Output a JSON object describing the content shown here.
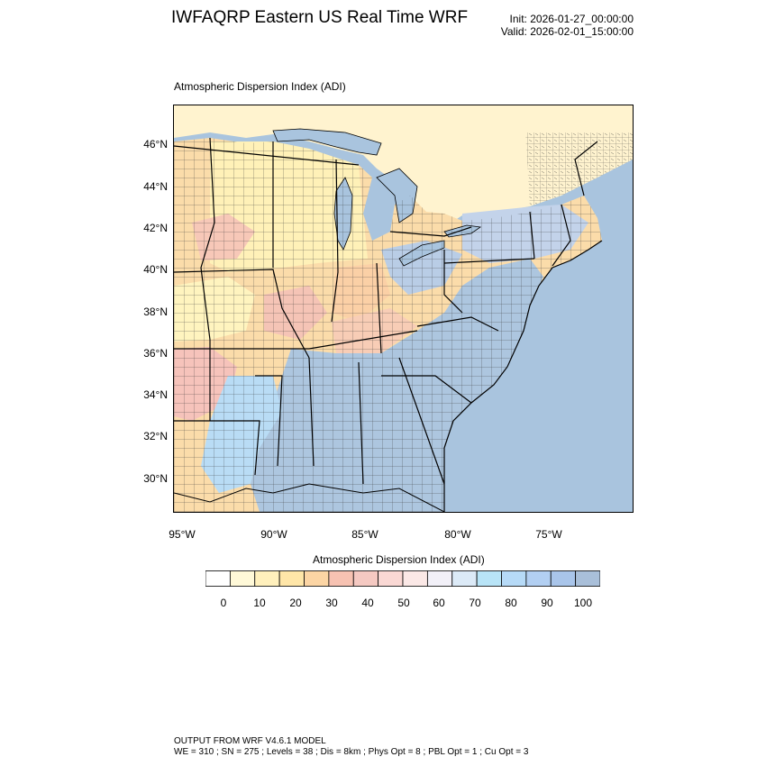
{
  "header": {
    "title": "IWFAQRP Eastern US Real Time WRF",
    "init": "Init: 2026-01-27_00:00:00",
    "valid": "Valid: 2026-02-01_15:00:00"
  },
  "plot": {
    "subtitle": "Atmospheric Dispersion Index   (ADI)",
    "lat_labels": [
      "46°N",
      "44°N",
      "42°N",
      "40°N",
      "38°N",
      "36°N",
      "34°N",
      "32°N",
      "30°N"
    ],
    "lon_labels": [
      "95°W",
      "90°W",
      "85°W",
      "80°W",
      "75°W"
    ]
  },
  "colorbar": {
    "title": "Atmospheric Dispersion Index  (ADI)",
    "labels": [
      "0",
      "10",
      "20",
      "30",
      "40",
      "50",
      "60",
      "70",
      "80",
      "90",
      "100"
    ],
    "colors": [
      "#ffffff",
      "#fff9d8",
      "#fff0bc",
      "#ffe6a8",
      "#fcd5a4",
      "#f7c2b2",
      "#f5c9c2",
      "#fad8d4",
      "#fbe8e6",
      "#f2f0f8",
      "#dceaf7",
      "#b8e4f7",
      "#b6daf7",
      "#b2cff2",
      "#a9c5ea",
      "#a9bfd9"
    ]
  },
  "colors": {
    "water": "#a9c4de",
    "land_yellow": "#fff2c2",
    "land_orange": "#fbd3a7",
    "land_pink": "#f6c4bc",
    "land_blue": "#b7d3ee"
  },
  "footer": {
    "line1": "OUTPUT FROM WRF V4.6.1 MODEL",
    "line2": "WE = 310 ; SN = 275 ; Levels = 38 ; Dis = 8km ; Phys Opt = 8 ; PBL Opt = 1 ; Cu Opt = 3"
  }
}
